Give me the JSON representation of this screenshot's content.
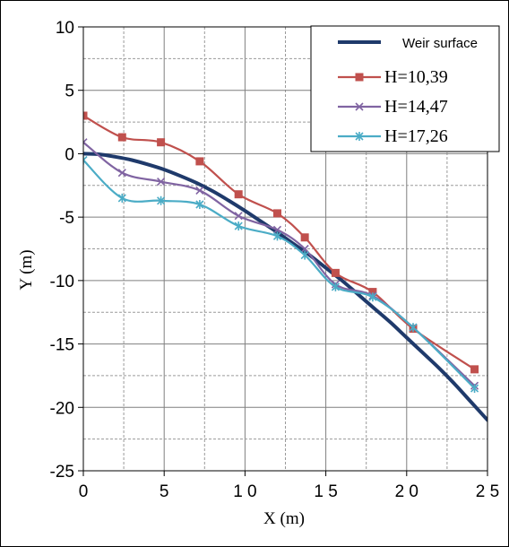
{
  "chart_data": {
    "type": "line",
    "title": "",
    "xlabel": "X (m)",
    "ylabel": "Y (m)",
    "xlim": [
      0,
      25
    ],
    "ylim": [
      -25,
      10
    ],
    "x_ticks": [
      0,
      5,
      10,
      15,
      20,
      25
    ],
    "y_ticks": [
      10,
      5,
      0,
      -5,
      -10,
      -15,
      -20,
      -25
    ],
    "x_tick_labels": [
      "0",
      "5",
      "1 0",
      "1 5",
      "2 0",
      "2 5"
    ],
    "y_tick_labels": [
      "10",
      "5",
      "0",
      "-5",
      "-10",
      "-15",
      "-20",
      "-25"
    ],
    "grid": true,
    "legend_position": "top-right",
    "series": [
      {
        "name": "Weir surface",
        "color": "#1F3A6B",
        "marker": "none",
        "x": [
          0,
          1,
          2,
          3,
          4,
          5,
          6,
          7,
          8,
          9,
          10,
          11,
          12,
          13,
          14,
          15,
          16,
          17,
          18,
          19,
          20,
          21,
          22,
          23,
          24,
          25
        ],
        "y": [
          0,
          -0.05,
          -0.25,
          -0.5,
          -0.85,
          -1.25,
          -1.75,
          -2.3,
          -2.95,
          -3.7,
          -4.5,
          -5.35,
          -6.2,
          -7.1,
          -8.0,
          -9.0,
          -10.0,
          -11.1,
          -12.2,
          -13.3,
          -14.5,
          -15.7,
          -16.9,
          -18.2,
          -19.6,
          -21.0
        ]
      },
      {
        "name": "H=10,39",
        "color": "#C0504D",
        "marker": "square",
        "x": [
          0,
          2.4,
          4.8,
          7.2,
          9.6,
          12.0,
          13.7,
          15.6,
          17.9,
          20.4,
          24.2
        ],
        "y": [
          3.0,
          1.3,
          0.9,
          -0.6,
          -3.2,
          -4.7,
          -6.6,
          -9.4,
          -10.9,
          -13.8,
          -17.0
        ]
      },
      {
        "name": "H=14,47",
        "color": "#8064A2",
        "marker": "x",
        "x": [
          0,
          2.4,
          4.8,
          7.2,
          9.6,
          12.0,
          13.7,
          15.6,
          17.9,
          20.4,
          24.2
        ],
        "y": [
          0.9,
          -1.5,
          -2.2,
          -2.9,
          -4.9,
          -6.0,
          -7.5,
          -10.3,
          -11.2,
          -13.7,
          -18.3
        ]
      },
      {
        "name": "H=17,26",
        "color": "#4BACC6",
        "marker": "asterisk",
        "x": [
          0,
          2.4,
          4.8,
          7.2,
          9.6,
          12.0,
          13.7,
          15.6,
          17.9,
          20.4,
          24.2
        ],
        "y": [
          -0.5,
          -3.5,
          -3.7,
          -4.0,
          -5.7,
          -6.5,
          -8.0,
          -10.5,
          -11.3,
          -13.7,
          -18.5
        ]
      }
    ]
  }
}
